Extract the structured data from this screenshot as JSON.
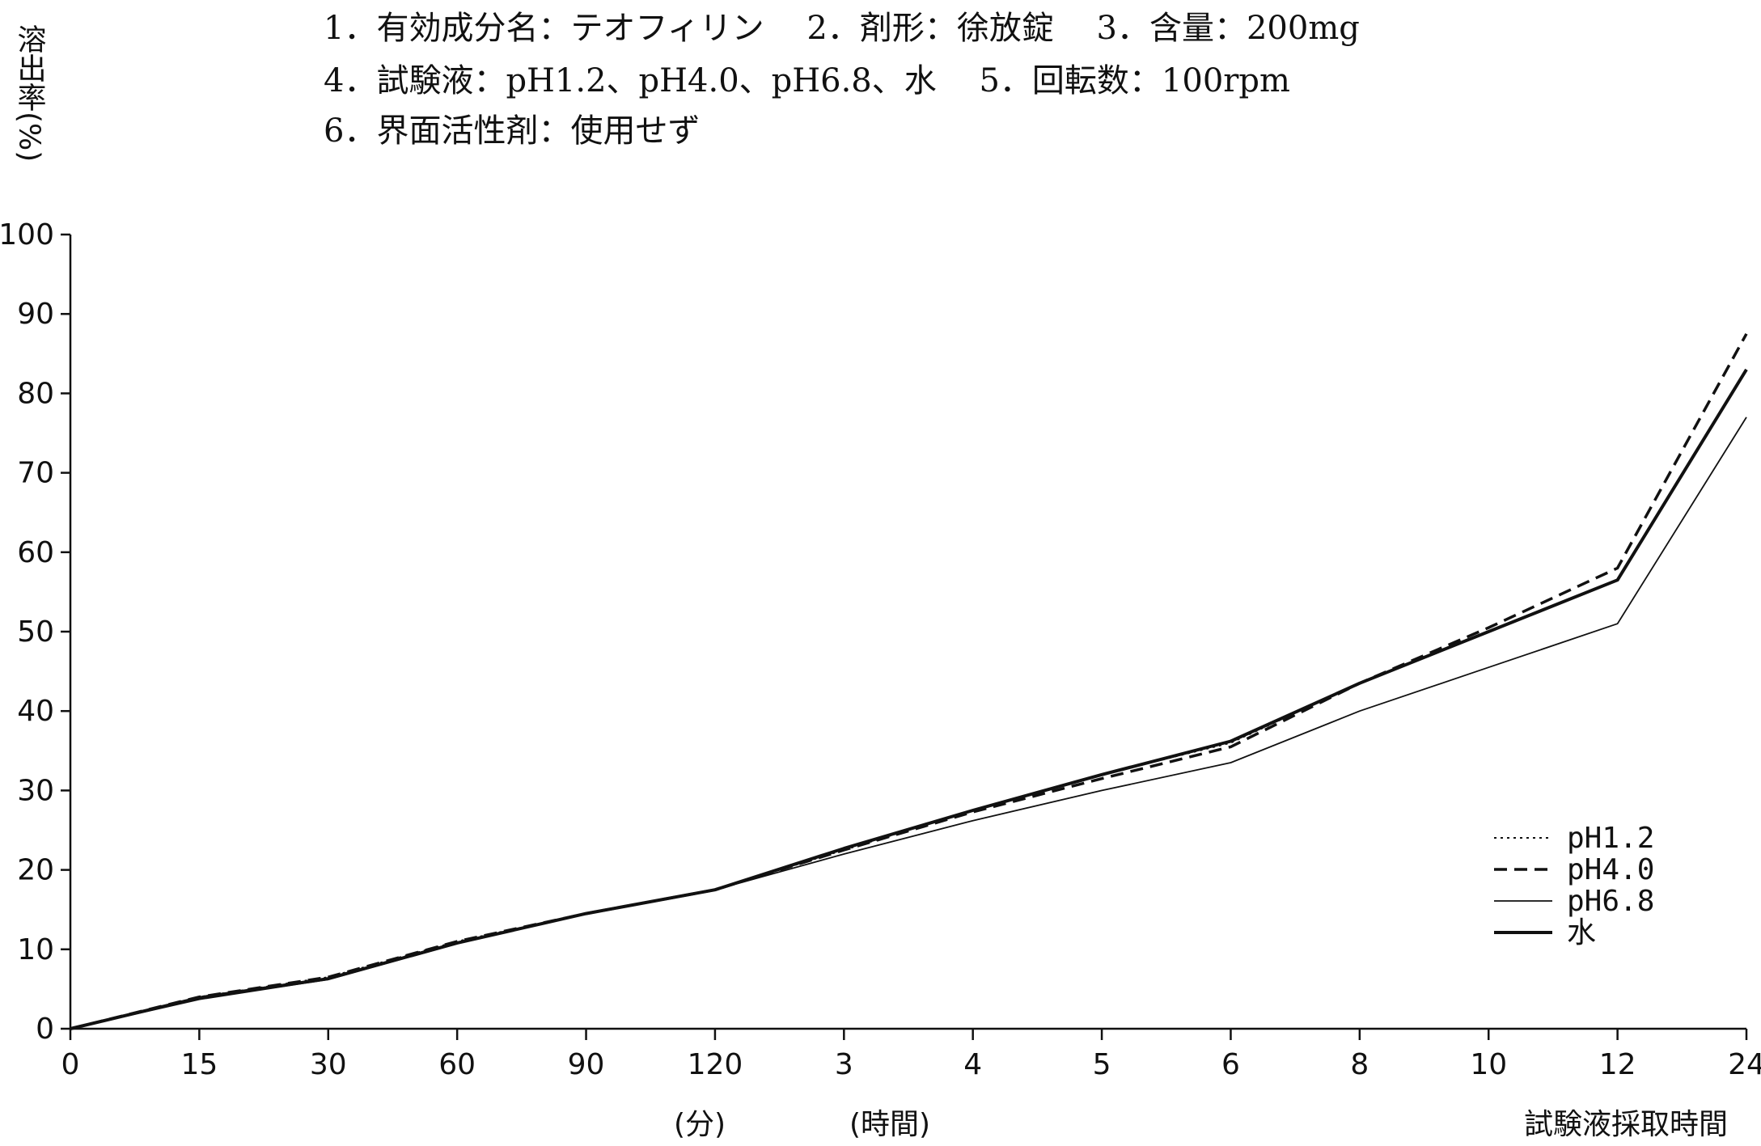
{
  "chart_data": {
    "type": "line",
    "info_lines": [
      "1．有効成分名：テオフィリン　 2．剤形：徐放錠　 3．含量：200mg",
      "4．試験液：pH1.2、pH4.0、pH6.8、水　 5．回転数：100rpm",
      "6．界面活性剤：使用せず"
    ],
    "ylabel": "溶出率(%)",
    "xlabel": "試験液採取時間",
    "x_unit_minutes": "(分)",
    "x_unit_hours": "(時間)",
    "categories": [
      "0",
      "15",
      "30",
      "60",
      "90",
      "120",
      "3",
      "4",
      "5",
      "6",
      "8",
      "10",
      "12",
      "24"
    ],
    "y_ticks": [
      "0",
      "10",
      "20",
      "30",
      "40",
      "50",
      "60",
      "70",
      "80",
      "90",
      "100"
    ],
    "ylim": [
      0,
      100
    ],
    "grid": false,
    "legend_position": "bottom-right",
    "series": [
      {
        "name": "pH1.2",
        "style": "dotted",
        "values": [
          0,
          4.0,
          6.5,
          11,
          14.5,
          17.5,
          22.5,
          27.5,
          32,
          36,
          43.5,
          50,
          56.5,
          83
        ]
      },
      {
        "name": "pH4.0",
        "style": "dashed",
        "values": [
          0,
          4.0,
          6.5,
          11,
          14.5,
          17.5,
          22.5,
          27.3,
          31.5,
          35.5,
          43.5,
          50.5,
          58,
          87.5
        ]
      },
      {
        "name": "pH6.8",
        "style": "thin",
        "values": [
          0,
          3.7,
          6.2,
          10.7,
          14.5,
          17.5,
          22,
          26.2,
          30,
          33.5,
          40,
          45.5,
          51,
          77
        ]
      },
      {
        "name": "水",
        "style": "solid",
        "values": [
          0,
          3.9,
          6.3,
          10.8,
          14.5,
          17.5,
          22.7,
          27.5,
          32,
          36.2,
          43.5,
          50,
          56.5,
          83
        ]
      }
    ]
  }
}
